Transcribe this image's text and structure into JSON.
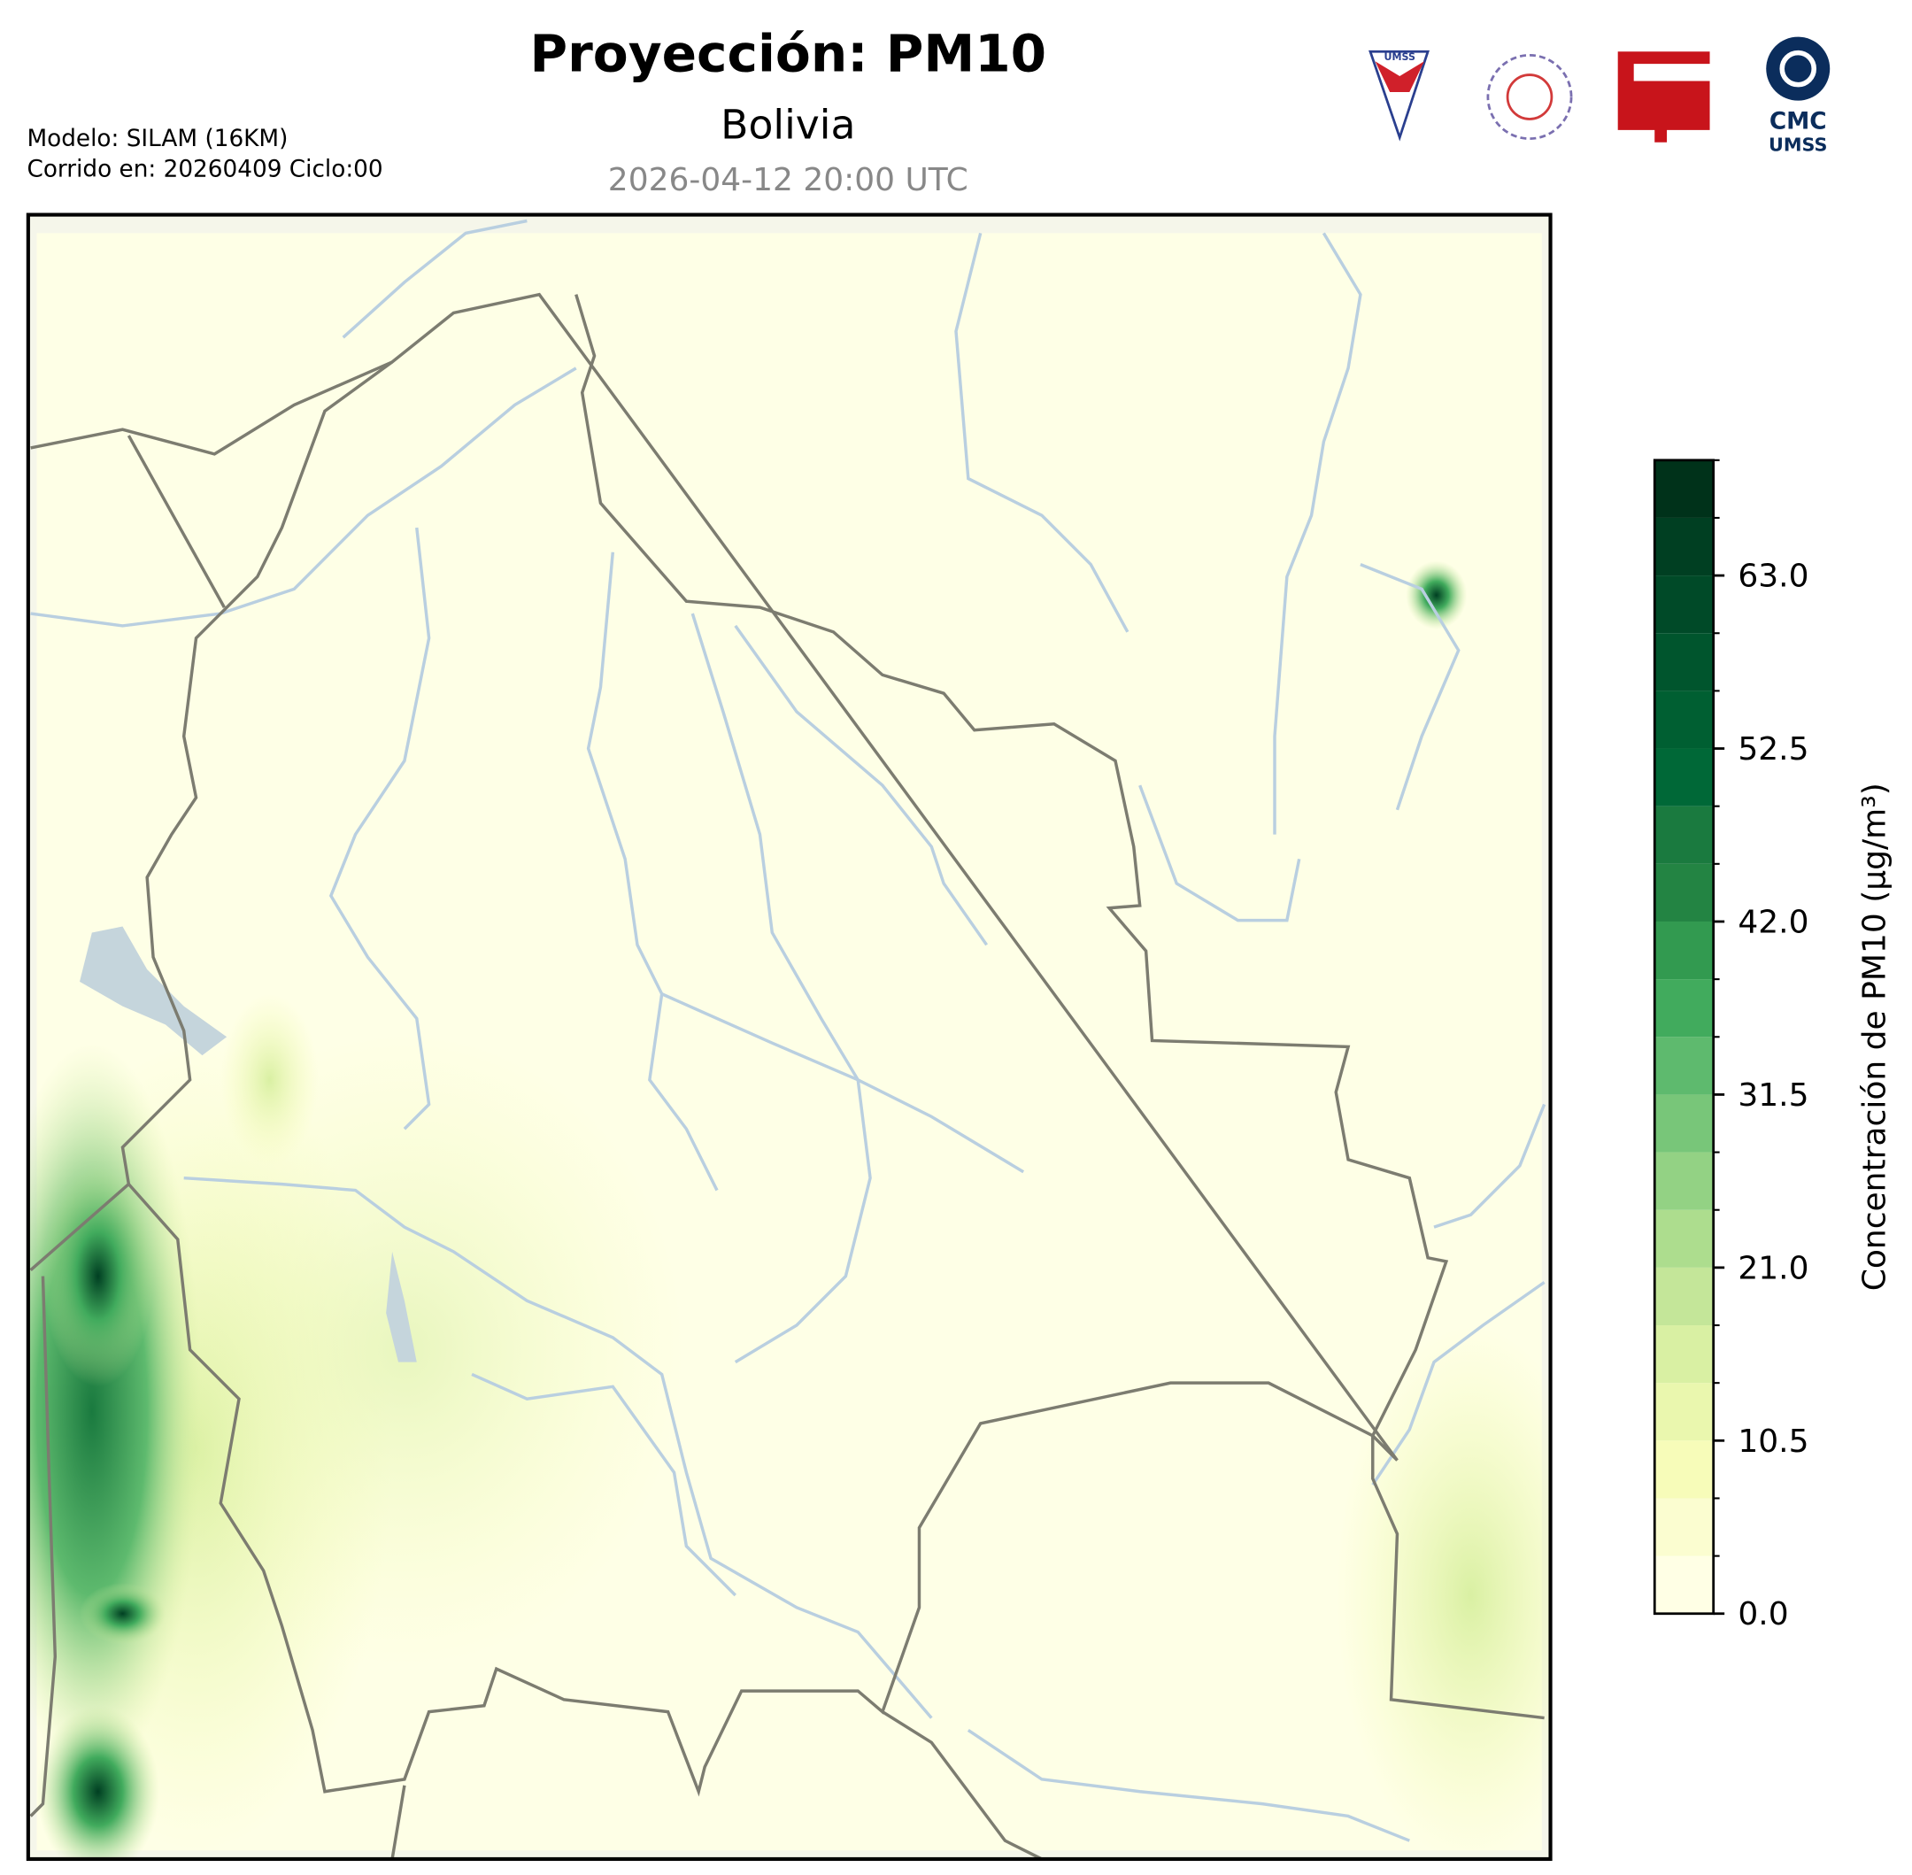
{
  "header": {
    "title": "Proyección: PM10",
    "subtitle": "Bolivia",
    "date": "2026-04-12 20:00 UTC",
    "model": "Modelo: SILAM (16KM)",
    "run": "Corrido en: 20260409 Ciclo:00"
  },
  "logos": {
    "umss": "UMSS",
    "cmc": "CMC",
    "cmc_sub": "UMSS"
  },
  "chart_data": {
    "type": "colorbar",
    "label": "Concentración de PM10 (µg/m³)",
    "ylim": [
      0,
      70
    ],
    "yticks": [
      {
        "value": 0,
        "label": "0.0"
      },
      {
        "value": 10.5,
        "label": "10.5"
      },
      {
        "value": 21,
        "label": "21.0"
      },
      {
        "value": 31.5,
        "label": "31.5"
      },
      {
        "value": 42,
        "label": "42.0"
      },
      {
        "value": 52.5,
        "label": "52.5"
      },
      {
        "value": 63,
        "label": "63.0"
      }
    ],
    "boundaries": [
      0,
      3.5,
      7,
      10.5,
      14,
      17.5,
      21,
      24.5,
      28,
      31.5,
      35,
      38.5,
      42,
      45.5,
      49,
      52.5,
      56,
      59.5,
      63,
      66.5,
      70
    ],
    "colors": [
      "#ffffe5",
      "#fbfdd0",
      "#f7fcb9",
      "#eaf7ae",
      "#d9f0a3",
      "#c4e699",
      "#addd8e",
      "#93d284",
      "#78c679",
      "#5eba6e",
      "#41ab5d",
      "#329a50",
      "#238443",
      "#1a7a3f",
      "#006837",
      "#005f32",
      "#00552d",
      "#004a28",
      "#003f22",
      "#00321a"
    ]
  }
}
